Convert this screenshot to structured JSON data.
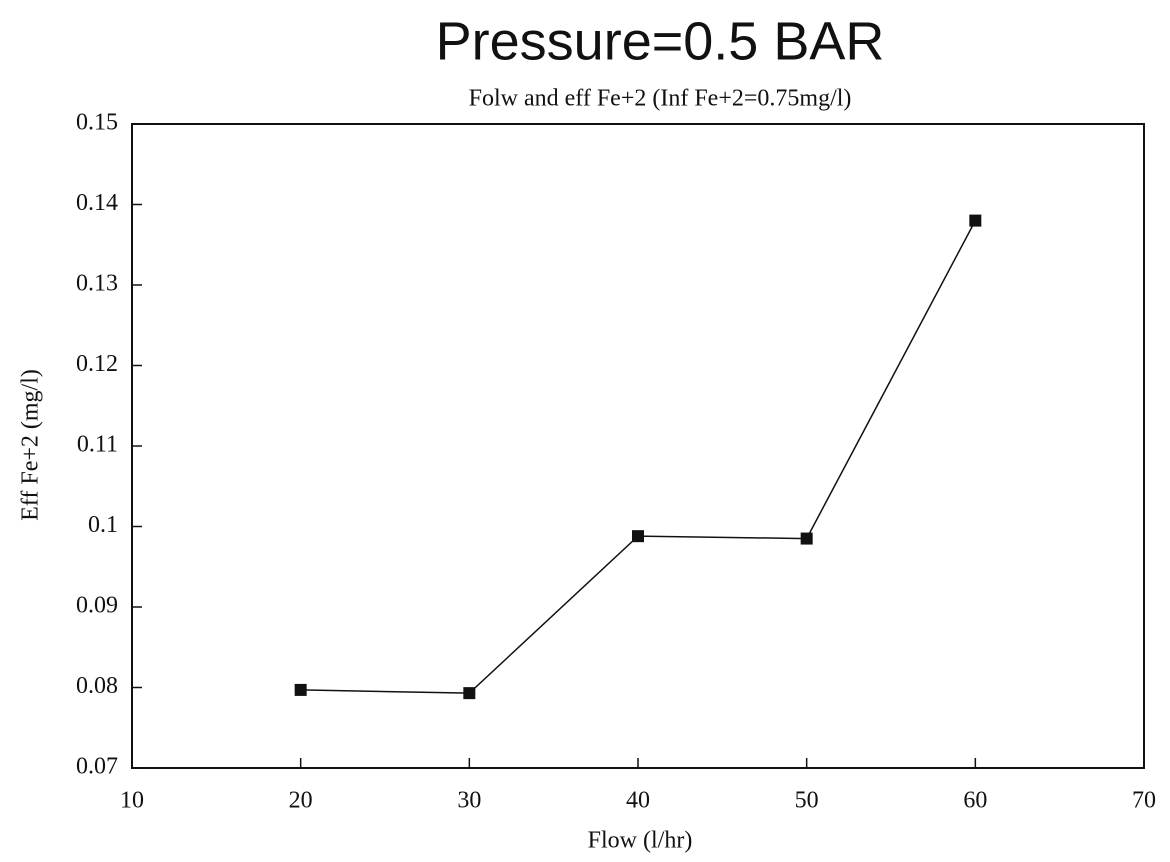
{
  "chart_data": {
    "type": "line",
    "title": "Pressure=0.5 BAR",
    "subtitle": "Folw and eff Fe+2 (Inf Fe+2=0.75mg/l)",
    "x_label": "Flow (l/hr)",
    "y_label": "Eff Fe+2 (mg/l)",
    "x": [
      20,
      30,
      40,
      50,
      60
    ],
    "series": [
      {
        "color": "#111111",
        "values": [
          0.0797,
          0.0793,
          0.0988,
          0.0985,
          0.138
        ]
      }
    ],
    "xlim": [
      10,
      70
    ],
    "xticks": [
      10,
      20,
      30,
      40,
      50,
      60,
      70
    ],
    "ylim": [
      0.07,
      0.15
    ],
    "yticks": [
      0.07,
      0.08,
      0.09,
      0.1,
      0.11,
      0.12,
      0.13,
      0.14,
      0.15
    ]
  }
}
